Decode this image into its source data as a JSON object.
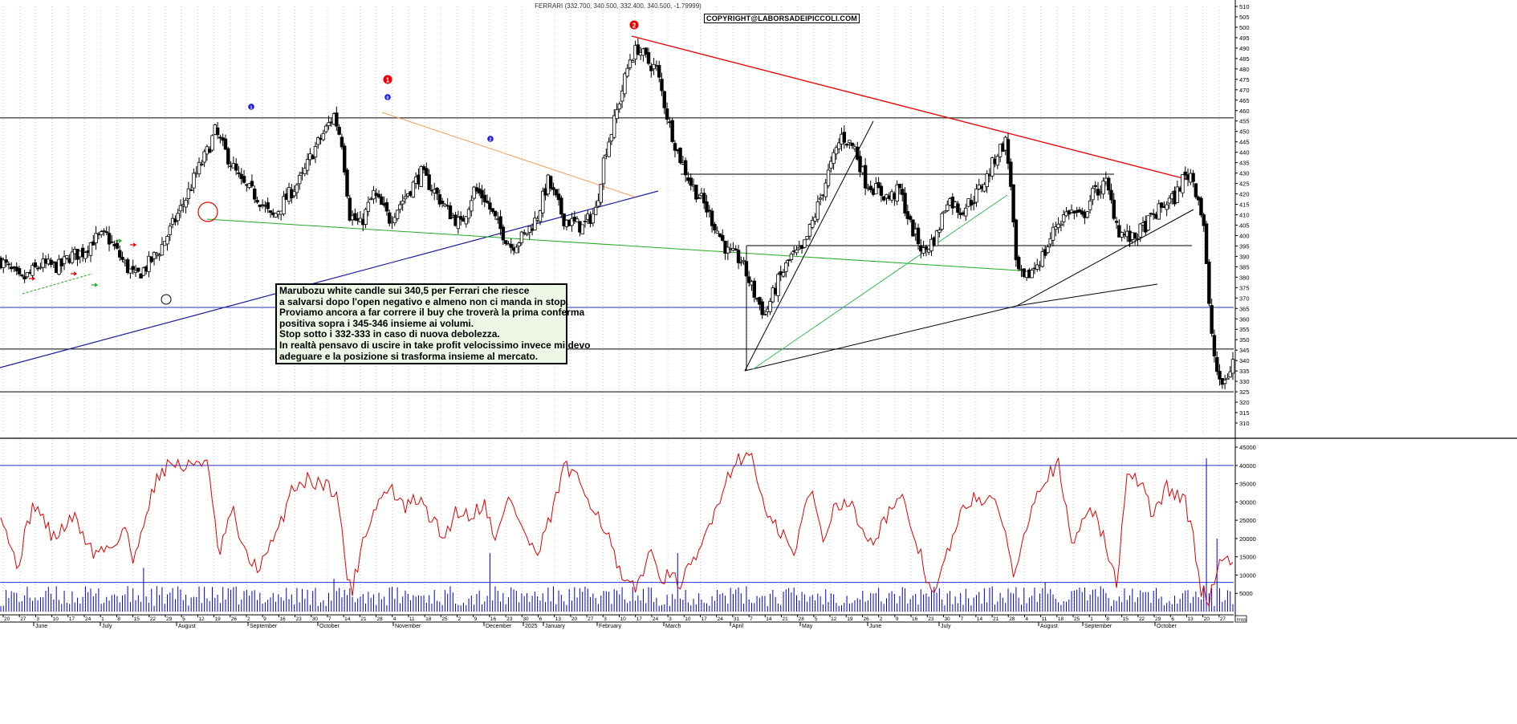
{
  "title": "FERRARI (332.700, 340.500, 332.400, 340.500, -1.79999)",
  "copyright": "COPYRIGHT@LABORSADEIPICCOLI.COM",
  "note_lines": [
    "Marubozu white candle sui 340,5 per Ferrari che riesce",
    "a salvarsi dopo l'open negativo e almeno non ci manda in stop.",
    "Proviamo ancora a far correre il buy che troverà la prima conferma",
    "positiva sopra i 345-346 insieme ai volumi.",
    "Stop sotto i 332-333 in caso di nuova debolezza.",
    "In realtà pensavo di uscire in take profit velocissimo invece mi devo",
    "adeguare e la posizione si trasforma insieme al mercato."
  ],
  "markers": {
    "red_1": "1",
    "red_2": "2",
    "blue_1": "1",
    "blue_0": "0",
    "blue_2": "2"
  },
  "colors": {
    "up_candle": "#ffffff",
    "down_candle": "#000000",
    "volume_bars": "#0000cc",
    "oscillator": "#dd0000",
    "red_trendline": "#ee0000",
    "orange_trendline": "#ff9955",
    "blue_trendline": "#1a1a99",
    "green_trendline": "#22aa22",
    "light_green_trendline": "#33bb55"
  },
  "chart_data": [
    {
      "type": "candlestick",
      "series_label": "FERRARI",
      "ylim": [
        305,
        510
      ],
      "y_ticks": [
        310,
        315,
        320,
        325,
        330,
        335,
        340,
        345,
        350,
        355,
        360,
        365,
        370,
        375,
        380,
        385,
        390,
        395,
        400,
        405,
        410,
        415,
        420,
        425,
        430,
        435,
        440,
        445,
        450,
        455,
        460,
        465,
        470,
        475,
        480,
        485,
        490,
        495,
        500,
        505,
        510
      ],
      "horizontal_levels": [
        456.5,
        365.5,
        345.5,
        325
      ],
      "anchor_closes": [
        [
          0,
          388
        ],
        [
          15,
          378
        ],
        [
          30,
          386
        ],
        [
          45,
          385
        ],
        [
          52,
          390
        ],
        [
          62,
          392
        ],
        [
          70,
          398
        ],
        [
          80,
          400
        ],
        [
          88,
          392
        ],
        [
          95,
          385
        ],
        [
          102,
          380
        ],
        [
          110,
          385
        ],
        [
          120,
          393
        ],
        [
          130,
          405
        ],
        [
          140,
          418
        ],
        [
          148,
          430
        ],
        [
          156,
          440
        ],
        [
          162,
          450
        ],
        [
          170,
          440
        ],
        [
          182,
          425
        ],
        [
          195,
          418
        ],
        [
          205,
          408
        ],
        [
          216,
          418
        ],
        [
          228,
          428
        ],
        [
          236,
          440
        ],
        [
          245,
          450
        ],
        [
          252,
          458
        ],
        [
          258,
          445
        ],
        [
          264,
          410
        ],
        [
          272,
          405
        ],
        [
          282,
          420
        ],
        [
          294,
          408
        ],
        [
          305,
          418
        ],
        [
          318,
          430
        ],
        [
          326,
          423
        ],
        [
          338,
          412
        ],
        [
          348,
          405
        ],
        [
          358,
          422
        ],
        [
          366,
          418
        ],
        [
          376,
          405
        ],
        [
          386,
          395
        ],
        [
          396,
          400
        ],
        [
          405,
          408
        ],
        [
          414,
          426
        ],
        [
          426,
          408
        ],
        [
          440,
          404
        ],
        [
          450,
          412
        ],
        [
          457,
          440
        ],
        [
          463,
          452
        ],
        [
          470,
          470
        ],
        [
          476,
          485
        ],
        [
          482,
          490
        ],
        [
          490,
          483
        ],
        [
          496,
          480
        ],
        [
          505,
          455
        ],
        [
          512,
          440
        ],
        [
          522,
          425
        ],
        [
          532,
          415
        ],
        [
          540,
          405
        ],
        [
          550,
          392
        ],
        [
          560,
          388
        ],
        [
          570,
          372
        ],
        [
          578,
          362
        ],
        [
          588,
          378
        ],
        [
          598,
          390
        ],
        [
          606,
          392
        ],
        [
          616,
          410
        ],
        [
          626,
          430
        ],
        [
          636,
          448
        ],
        [
          646,
          442
        ],
        [
          654,
          426
        ],
        [
          662,
          422
        ],
        [
          672,
          418
        ],
        [
          680,
          422
        ],
        [
          688,
          405
        ],
        [
          698,
          392
        ],
        [
          708,
          400
        ],
        [
          716,
          418
        ],
        [
          726,
          412
        ],
        [
          736,
          418
        ],
        [
          746,
          428
        ],
        [
          754,
          440
        ],
        [
          760,
          445
        ],
        [
          764,
          425
        ],
        [
          768,
          385
        ],
        [
          774,
          378
        ],
        [
          782,
          385
        ],
        [
          790,
          392
        ],
        [
          798,
          405
        ],
        [
          808,
          412
        ],
        [
          818,
          408
        ],
        [
          826,
          420
        ],
        [
          836,
          425
        ],
        [
          846,
          402
        ],
        [
          856,
          398
        ],
        [
          866,
          405
        ],
        [
          876,
          412
        ],
        [
          882,
          416
        ],
        [
          888,
          418
        ],
        [
          894,
          427
        ],
        [
          900,
          430
        ],
        [
          906,
          418
        ],
        [
          910,
          405
        ],
        [
          914,
          365
        ],
        [
          918,
          342
        ],
        [
          922,
          328
        ],
        [
          926,
          330
        ],
        [
          930,
          336
        ],
        [
          932,
          340
        ]
      ]
    },
    {
      "type": "line",
      "series_label": "oscillator",
      "ylim": [
        0,
        47000
      ],
      "y_ticks": [
        5000,
        10000,
        15000,
        20000,
        25000,
        30000,
        35000,
        40000,
        45000
      ],
      "horizontal_levels": [
        40000,
        8000
      ],
      "anchor_values": [
        [
          0,
          28000
        ],
        [
          12,
          12000
        ],
        [
          25,
          30000
        ],
        [
          40,
          20000
        ],
        [
          55,
          26000
        ],
        [
          70,
          16000
        ],
        [
          85,
          18000
        ],
        [
          95,
          24000
        ],
        [
          100,
          12000
        ],
        [
          110,
          28000
        ],
        [
          120,
          38000
        ],
        [
          130,
          41000
        ],
        [
          140,
          39000
        ],
        [
          148,
          41500
        ],
        [
          156,
          41000
        ],
        [
          165,
          15000
        ],
        [
          175,
          28000
        ],
        [
          185,
          15000
        ],
        [
          196,
          12000
        ],
        [
          210,
          22000
        ],
        [
          220,
          34000
        ],
        [
          232,
          36000
        ],
        [
          244,
          35000
        ],
        [
          254,
          33000
        ],
        [
          262,
          10000
        ],
        [
          266,
          6000
        ],
        [
          274,
          20000
        ],
        [
          285,
          30000
        ],
        [
          295,
          34000
        ],
        [
          305,
          28000
        ],
        [
          315,
          31000
        ],
        [
          325,
          26000
        ],
        [
          335,
          20000
        ],
        [
          345,
          28000
        ],
        [
          355,
          26000
        ],
        [
          365,
          30000
        ],
        [
          375,
          20000
        ],
        [
          385,
          32000
        ],
        [
          395,
          22000
        ],
        [
          406,
          15000
        ],
        [
          418,
          28000
        ],
        [
          426,
          40000
        ],
        [
          438,
          35000
        ],
        [
          450,
          28000
        ],
        [
          460,
          20000
        ],
        [
          470,
          8000
        ],
        [
          480,
          6000
        ],
        [
          490,
          16000
        ],
        [
          500,
          10000
        ],
        [
          514,
          8000
        ],
        [
          526,
          14000
        ],
        [
          540,
          28000
        ],
        [
          556,
          42000
        ],
        [
          568,
          43000
        ],
        [
          580,
          25000
        ],
        [
          592,
          21000
        ],
        [
          600,
          15000
        ],
        [
          612,
          34000
        ],
        [
          622,
          20000
        ],
        [
          632,
          30000
        ],
        [
          642,
          30000
        ],
        [
          652,
          22000
        ],
        [
          662,
          20000
        ],
        [
          672,
          28000
        ],
        [
          682,
          30000
        ],
        [
          692,
          20000
        ],
        [
          700,
          10000
        ],
        [
          706,
          4000
        ],
        [
          716,
          16000
        ],
        [
          726,
          26000
        ],
        [
          736,
          32000
        ],
        [
          746,
          30000
        ],
        [
          756,
          28000
        ],
        [
          766,
          10000
        ],
        [
          780,
          30000
        ],
        [
          790,
          37000
        ],
        [
          800,
          40000
        ],
        [
          810,
          18000
        ],
        [
          824,
          30000
        ],
        [
          834,
          20000
        ],
        [
          844,
          8000
        ],
        [
          852,
          36000
        ],
        [
          862,
          36000
        ],
        [
          872,
          26000
        ],
        [
          882,
          34000
        ],
        [
          890,
          32000
        ],
        [
          896,
          30000
        ],
        [
          902,
          20000
        ],
        [
          908,
          6000
        ],
        [
          914,
          3000
        ],
        [
          920,
          12000
        ],
        [
          928,
          15000
        ]
      ]
    },
    {
      "type": "bar",
      "series_label": "volume",
      "ylim": [
        0,
        47000
      ],
      "spikes": [
        [
          108,
          12000
        ],
        [
          252,
          9000
        ],
        [
          370,
          16000
        ],
        [
          512,
          16000
        ],
        [
          560,
          5000
        ],
        [
          700,
          5000
        ],
        [
          790,
          8000
        ],
        [
          912,
          42000
        ],
        [
          920,
          20000
        ]
      ]
    }
  ],
  "x_axis": {
    "date_ticks": [
      "20",
      "27",
      "3",
      "10",
      "17",
      "24",
      "1",
      "8",
      "15",
      "22",
      "29",
      "5",
      "12",
      "19",
      "26",
      "2",
      "9",
      "16",
      "23",
      "30",
      "7",
      "14",
      "21",
      "28",
      "4",
      "11",
      "18",
      "25",
      "2",
      "9",
      "16",
      "23",
      "30",
      "6",
      "13",
      "20",
      "27",
      "3",
      "10",
      "17",
      "24",
      "3",
      "10",
      "17",
      "24",
      "31",
      "7",
      "14",
      "21",
      "28",
      "5",
      "12",
      "19",
      "26",
      "2",
      "9",
      "16",
      "23",
      "30",
      "7",
      "14",
      "21",
      "28",
      "4",
      "11",
      "18",
      "25",
      "1",
      "8",
      "15",
      "22",
      "29",
      "6",
      "13",
      "20",
      "27"
    ],
    "month_labels": [
      "June",
      "July",
      "August",
      "September",
      "October",
      "November",
      "December",
      "2025",
      "January",
      "February",
      "March",
      "April",
      "May",
      "June",
      "July",
      "August",
      "September",
      "October"
    ],
    "corner_label": "lmas"
  }
}
